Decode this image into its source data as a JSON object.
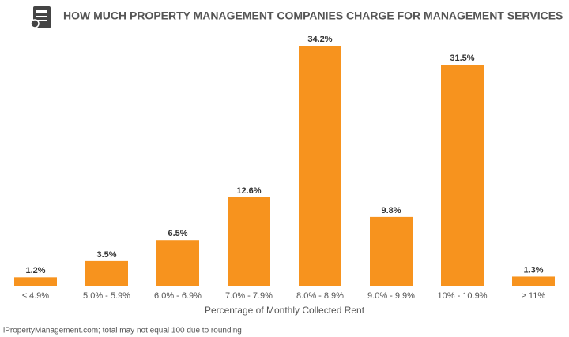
{
  "chart_data": {
    "type": "bar",
    "title": "HOW MUCH PROPERTY MANAGEMENT COMPANIES CHARGE FOR MANAGEMENT SERVICES",
    "categories": [
      "≤ 4.9%",
      "5.0% - 5.9%",
      "6.0% - 6.9%",
      "7.0% - 7.9%",
      "8.0% - 8.9%",
      "9.0% - 9.9%",
      "10% - 10.9%",
      "≥ 11%"
    ],
    "values": [
      1.2,
      3.5,
      6.5,
      12.6,
      34.2,
      9.8,
      31.5,
      1.3
    ],
    "value_labels": [
      "1.2%",
      "3.5%",
      "6.5%",
      "12.6%",
      "34.2%",
      "9.8%",
      "31.5%",
      "1.3%"
    ],
    "color": "#f7931e",
    "x_label": "Percentage of Monthly Collected Rent",
    "footnote": "iPropertyManagement.com; total may not equal 100 due to rounding"
  }
}
